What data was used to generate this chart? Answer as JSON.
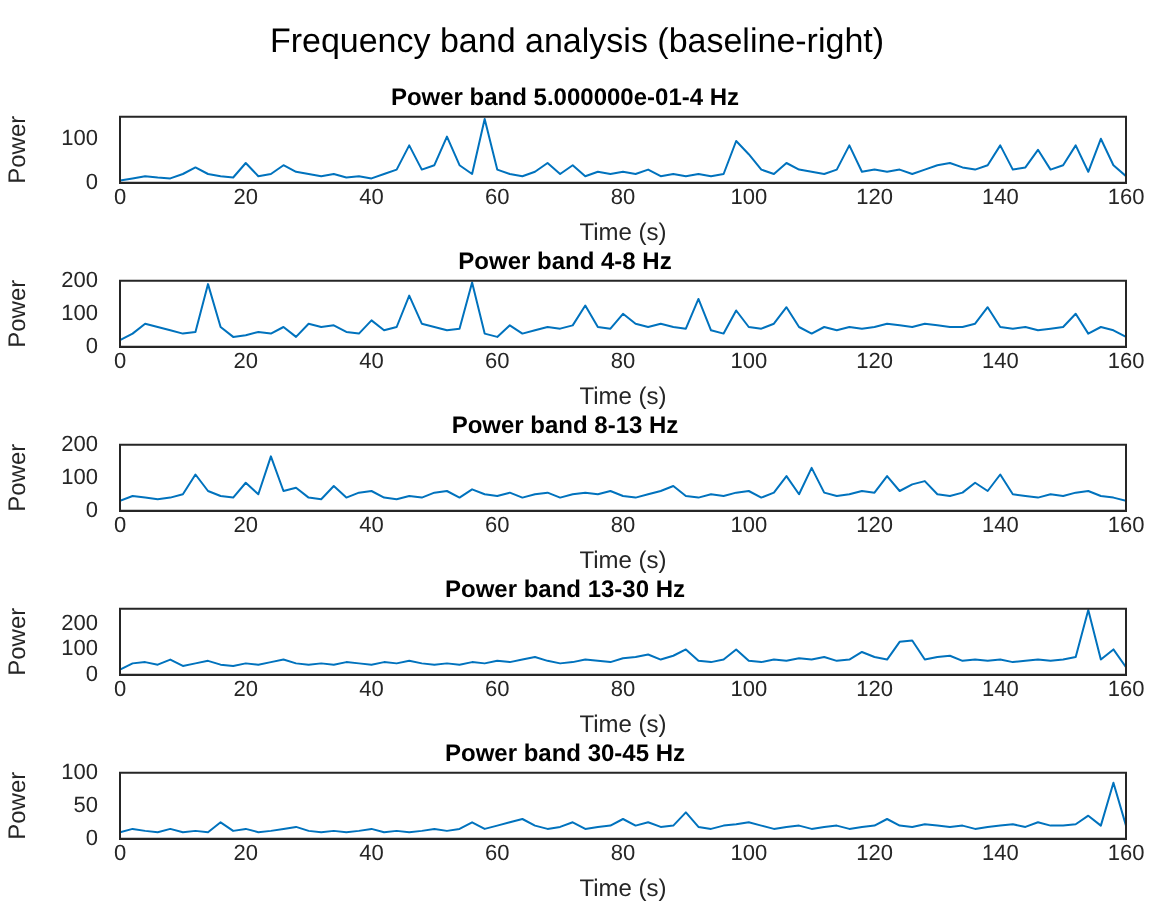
{
  "chart_data": [
    {
      "type": "line",
      "title": "Frequency band analysis (baseline-right)",
      "subtitle": "Power band 5.000000e-01-4 Hz",
      "xlabel": "Time (s)",
      "ylabel": "Power",
      "color": "#0072bd",
      "xlim": [
        0,
        160
      ],
      "xticks": [
        0,
        20,
        40,
        60,
        80,
        100,
        120,
        140,
        160
      ],
      "ylim": [
        0,
        150
      ],
      "yticks": [
        0,
        100
      ],
      "x": [
        0,
        2,
        4,
        6,
        8,
        10,
        12,
        14,
        16,
        18,
        20,
        22,
        24,
        26,
        28,
        30,
        32,
        34,
        36,
        38,
        40,
        42,
        44,
        46,
        48,
        50,
        52,
        54,
        56,
        58,
        60,
        62,
        64,
        66,
        68,
        70,
        72,
        74,
        76,
        78,
        80,
        82,
        84,
        86,
        88,
        90,
        92,
        94,
        96,
        98,
        100,
        102,
        104,
        106,
        108,
        110,
        112,
        114,
        116,
        118,
        120,
        122,
        124,
        126,
        128,
        130,
        132,
        134,
        136,
        138,
        140,
        142,
        144,
        146,
        148,
        150,
        152,
        154,
        156,
        158,
        160
      ],
      "values": [
        5,
        10,
        15,
        12,
        10,
        20,
        35,
        20,
        15,
        12,
        45,
        15,
        20,
        40,
        25,
        20,
        15,
        20,
        12,
        15,
        10,
        20,
        30,
        85,
        30,
        40,
        105,
        40,
        20,
        145,
        30,
        20,
        15,
        25,
        45,
        20,
        40,
        15,
        25,
        20,
        25,
        20,
        30,
        15,
        20,
        15,
        20,
        15,
        20,
        95,
        65,
        30,
        20,
        45,
        30,
        25,
        20,
        30,
        85,
        25,
        30,
        25,
        30,
        20,
        30,
        40,
        45,
        35,
        30,
        40,
        85,
        30,
        35,
        75,
        30,
        40,
        85,
        25,
        100,
        40,
        15
      ]
    },
    {
      "type": "line",
      "title": "Power band 4-8 Hz",
      "xlabel": "Time (s)",
      "ylabel": "Power",
      "color": "#0072bd",
      "xlim": [
        0,
        160
      ],
      "xticks": [
        0,
        20,
        40,
        60,
        80,
        100,
        120,
        140,
        160
      ],
      "ylim": [
        0,
        200
      ],
      "yticks": [
        0,
        100,
        200
      ],
      "x": [
        0,
        2,
        4,
        6,
        8,
        10,
        12,
        14,
        16,
        18,
        20,
        22,
        24,
        26,
        28,
        30,
        32,
        34,
        36,
        38,
        40,
        42,
        44,
        46,
        48,
        50,
        52,
        54,
        56,
        58,
        60,
        62,
        64,
        66,
        68,
        70,
        72,
        74,
        76,
        78,
        80,
        82,
        84,
        86,
        88,
        90,
        92,
        94,
        96,
        98,
        100,
        102,
        104,
        106,
        108,
        110,
        112,
        114,
        116,
        118,
        120,
        122,
        124,
        126,
        128,
        130,
        132,
        134,
        136,
        138,
        140,
        142,
        144,
        146,
        148,
        150,
        152,
        154,
        156,
        158,
        160
      ],
      "values": [
        20,
        40,
        70,
        60,
        50,
        40,
        45,
        190,
        60,
        30,
        35,
        45,
        40,
        60,
        30,
        70,
        60,
        65,
        45,
        40,
        80,
        50,
        60,
        155,
        70,
        60,
        50,
        55,
        195,
        40,
        30,
        65,
        40,
        50,
        60,
        55,
        65,
        125,
        60,
        55,
        100,
        70,
        60,
        70,
        60,
        55,
        145,
        50,
        40,
        110,
        60,
        55,
        70,
        120,
        60,
        40,
        60,
        50,
        60,
        55,
        60,
        70,
        65,
        60,
        70,
        65,
        60,
        60,
        70,
        120,
        60,
        55,
        60,
        50,
        55,
        60,
        100,
        40,
        60,
        50,
        30
      ]
    },
    {
      "type": "line",
      "title": "Power band 8-13 Hz",
      "xlabel": "Time (s)",
      "ylabel": "Power",
      "color": "#0072bd",
      "xlim": [
        0,
        160
      ],
      "xticks": [
        0,
        20,
        40,
        60,
        80,
        100,
        120,
        140,
        160
      ],
      "ylim": [
        0,
        200
      ],
      "yticks": [
        0,
        100,
        200
      ],
      "x": [
        0,
        2,
        4,
        6,
        8,
        10,
        12,
        14,
        16,
        18,
        20,
        22,
        24,
        26,
        28,
        30,
        32,
        34,
        36,
        38,
        40,
        42,
        44,
        46,
        48,
        50,
        52,
        54,
        56,
        58,
        60,
        62,
        64,
        66,
        68,
        70,
        72,
        74,
        76,
        78,
        80,
        82,
        84,
        86,
        88,
        90,
        92,
        94,
        96,
        98,
        100,
        102,
        104,
        106,
        108,
        110,
        112,
        114,
        116,
        118,
        120,
        122,
        124,
        126,
        128,
        130,
        132,
        134,
        136,
        138,
        140,
        142,
        144,
        146,
        148,
        150,
        152,
        154,
        156,
        158,
        160
      ],
      "values": [
        30,
        45,
        40,
        35,
        40,
        50,
        110,
        60,
        45,
        40,
        85,
        50,
        165,
        60,
        70,
        40,
        35,
        75,
        40,
        55,
        60,
        40,
        35,
        45,
        40,
        55,
        60,
        40,
        65,
        50,
        45,
        55,
        40,
        50,
        55,
        40,
        50,
        55,
        50,
        60,
        45,
        40,
        50,
        60,
        75,
        45,
        40,
        50,
        45,
        55,
        60,
        40,
        55,
        105,
        50,
        130,
        55,
        45,
        50,
        60,
        55,
        105,
        60,
        80,
        90,
        50,
        45,
        55,
        85,
        60,
        110,
        50,
        45,
        40,
        50,
        45,
        55,
        60,
        45,
        40,
        30
      ]
    },
    {
      "type": "line",
      "title": "Power band 13-30 Hz",
      "xlabel": "Time (s)",
      "ylabel": "Power",
      "color": "#0072bd",
      "xlim": [
        0,
        160
      ],
      "xticks": [
        0,
        20,
        40,
        60,
        80,
        100,
        120,
        140,
        160
      ],
      "ylim": [
        0,
        260
      ],
      "yticks": [
        0,
        100,
        200
      ],
      "x": [
        0,
        2,
        4,
        6,
        8,
        10,
        12,
        14,
        16,
        18,
        20,
        22,
        24,
        26,
        28,
        30,
        32,
        34,
        36,
        38,
        40,
        42,
        44,
        46,
        48,
        50,
        52,
        54,
        56,
        58,
        60,
        62,
        64,
        66,
        68,
        70,
        72,
        74,
        76,
        78,
        80,
        82,
        84,
        86,
        88,
        90,
        92,
        94,
        96,
        98,
        100,
        102,
        104,
        106,
        108,
        110,
        112,
        114,
        116,
        118,
        120,
        122,
        124,
        126,
        128,
        130,
        132,
        134,
        136,
        138,
        140,
        142,
        144,
        146,
        148,
        150,
        152,
        154,
        156,
        158,
        160
      ],
      "values": [
        20,
        45,
        50,
        40,
        60,
        35,
        45,
        55,
        40,
        35,
        45,
        40,
        50,
        60,
        45,
        40,
        45,
        40,
        50,
        45,
        40,
        50,
        45,
        55,
        45,
        40,
        45,
        40,
        50,
        45,
        55,
        50,
        60,
        70,
        55,
        45,
        50,
        60,
        55,
        50,
        65,
        70,
        80,
        60,
        75,
        100,
        55,
        50,
        60,
        100,
        55,
        50,
        60,
        55,
        65,
        60,
        70,
        55,
        60,
        90,
        70,
        60,
        130,
        135,
        60,
        70,
        75,
        55,
        60,
        55,
        60,
        50,
        55,
        60,
        55,
        60,
        70,
        255,
        60,
        100,
        30
      ]
    },
    {
      "type": "line",
      "title": "Power band 30-45 Hz",
      "xlabel": "Time (s)",
      "ylabel": "Power",
      "color": "#0072bd",
      "xlim": [
        0,
        160
      ],
      "xticks": [
        0,
        20,
        40,
        60,
        80,
        100,
        120,
        140,
        160
      ],
      "ylim": [
        0,
        100
      ],
      "yticks": [
        0,
        50,
        100
      ],
      "x": [
        0,
        2,
        4,
        6,
        8,
        10,
        12,
        14,
        16,
        18,
        20,
        22,
        24,
        26,
        28,
        30,
        32,
        34,
        36,
        38,
        40,
        42,
        44,
        46,
        48,
        50,
        52,
        54,
        56,
        58,
        60,
        62,
        64,
        66,
        68,
        70,
        72,
        74,
        76,
        78,
        80,
        82,
        84,
        86,
        88,
        90,
        92,
        94,
        96,
        98,
        100,
        102,
        104,
        106,
        108,
        110,
        112,
        114,
        116,
        118,
        120,
        122,
        124,
        126,
        128,
        130,
        132,
        134,
        136,
        138,
        140,
        142,
        144,
        146,
        148,
        150,
        152,
        154,
        156,
        158,
        160
      ],
      "values": [
        10,
        15,
        12,
        10,
        15,
        10,
        12,
        10,
        25,
        12,
        15,
        10,
        12,
        15,
        18,
        12,
        10,
        12,
        10,
        12,
        15,
        10,
        12,
        10,
        12,
        15,
        12,
        15,
        25,
        15,
        20,
        25,
        30,
        20,
        15,
        18,
        25,
        15,
        18,
        20,
        30,
        20,
        25,
        18,
        20,
        40,
        18,
        15,
        20,
        22,
        25,
        20,
        15,
        18,
        20,
        15,
        18,
        20,
        15,
        18,
        20,
        30,
        20,
        18,
        22,
        20,
        18,
        20,
        15,
        18,
        20,
        22,
        18,
        25,
        20,
        20,
        22,
        35,
        20,
        85,
        20
      ]
    }
  ]
}
